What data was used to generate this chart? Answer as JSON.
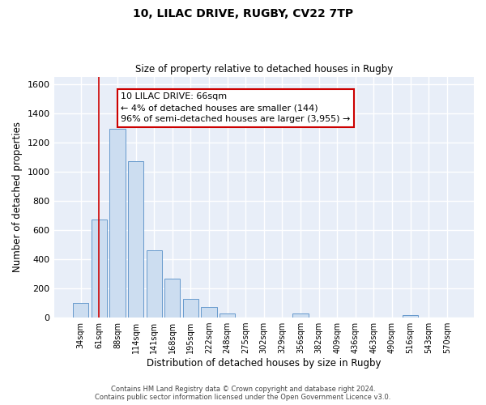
{
  "title": "10, LILAC DRIVE, RUGBY, CV22 7TP",
  "subtitle": "Size of property relative to detached houses in Rugby",
  "xlabel": "Distribution of detached houses by size in Rugby",
  "ylabel": "Number of detached properties",
  "bar_labels": [
    "34sqm",
    "61sqm",
    "88sqm",
    "114sqm",
    "141sqm",
    "168sqm",
    "195sqm",
    "222sqm",
    "248sqm",
    "275sqm",
    "302sqm",
    "329sqm",
    "356sqm",
    "382sqm",
    "409sqm",
    "436sqm",
    "463sqm",
    "490sqm",
    "516sqm",
    "543sqm",
    "570sqm"
  ],
  "bar_values": [
    100,
    670,
    1290,
    1070,
    460,
    265,
    130,
    75,
    30,
    0,
    0,
    0,
    30,
    0,
    0,
    0,
    0,
    0,
    15,
    0,
    0
  ],
  "bar_color": "#ccddf0",
  "bar_edge_color": "#6699cc",
  "ylim": [
    0,
    1650
  ],
  "yticks": [
    0,
    200,
    400,
    600,
    800,
    1000,
    1200,
    1400,
    1600
  ],
  "property_line_x": 1,
  "property_line_color": "#cc0000",
  "annotation_text": "10 LILAC DRIVE: 66sqm\n← 4% of detached houses are smaller (144)\n96% of semi-detached houses are larger (3,955) →",
  "annotation_box_color": "#ffffff",
  "annotation_box_edge": "#cc0000",
  "footer_line1": "Contains HM Land Registry data © Crown copyright and database right 2024.",
  "footer_line2": "Contains public sector information licensed under the Open Government Licence v3.0.",
  "fig_bg_color": "#ffffff",
  "plot_bg_color": "#e8eef8"
}
